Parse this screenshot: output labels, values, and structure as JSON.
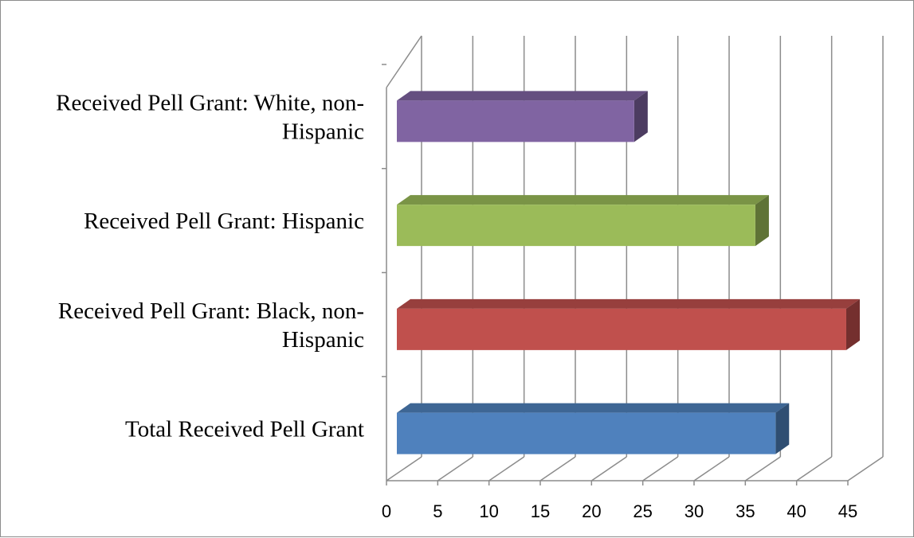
{
  "chart_data": {
    "type": "bar",
    "orientation": "horizontal",
    "style": "3d",
    "categories": [
      "Total Received Pell Grant",
      "Received Pell Grant: Black, non-Hispanic",
      "Received Pell Grant: Hispanic",
      "Received Pell Grant: White, non-Hispanic"
    ],
    "category_lines": [
      [
        "Total Received Pell Grant"
      ],
      [
        "Received Pell Grant: Black, non-",
        "Hispanic"
      ],
      [
        "Received Pell Grant: Hispanic"
      ],
      [
        "Received Pell Grant: White, non-",
        "Hispanic"
      ]
    ],
    "values": [
      37.5,
      44.5,
      35.5,
      23.5
    ],
    "xlim": [
      0,
      45
    ],
    "ticks": [
      0,
      5,
      10,
      15,
      20,
      25,
      30,
      35,
      40,
      45
    ],
    "tick_labels": [
      "0",
      "5",
      "10",
      "15",
      "20",
      "25",
      "30",
      "35",
      "40",
      "45"
    ],
    "grid": true,
    "legend": "none",
    "title": "",
    "xlabel": "",
    "ylabel": "",
    "colors": {
      "bars": [
        "#4f81bd",
        "#c0504d",
        "#9bbb59",
        "#8064a2"
      ],
      "bar_tops": [
        "#3e6694",
        "#973f3d",
        "#7a9446",
        "#654f80"
      ],
      "bar_sides": [
        "#2f4e72",
        "#742f2e",
        "#5f7336",
        "#4c3c61"
      ],
      "grid": "#8c8c8c"
    }
  }
}
